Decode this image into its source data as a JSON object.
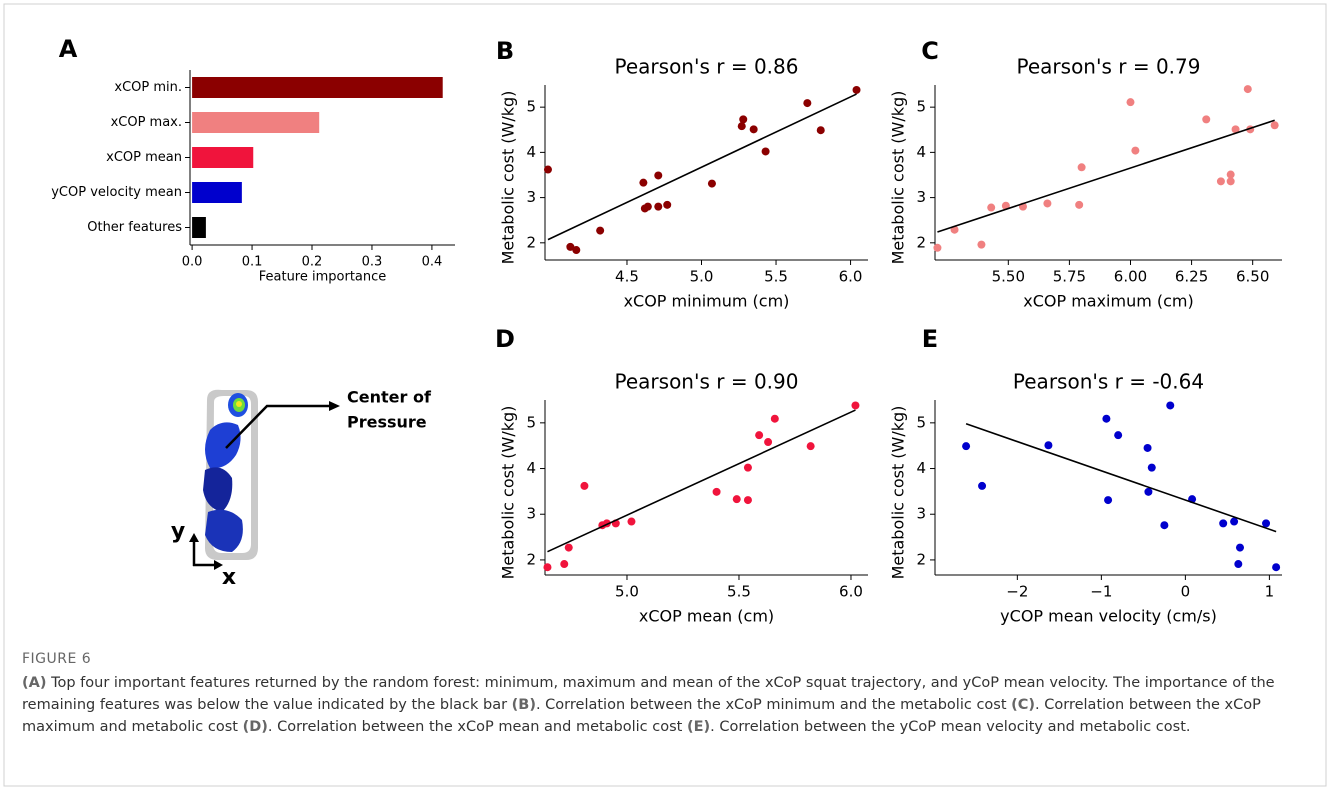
{
  "chart_data": [
    {
      "type": "barh",
      "panel": "A",
      "categories": [
        "xCOP min.",
        "xCOP max.",
        "xCOP mean",
        "yCOP velocity mean",
        "Other features"
      ],
      "values": [
        0.418,
        0.212,
        0.102,
        0.083,
        0.023
      ],
      "colors": [
        "#8b0000",
        "#f08080",
        "#f0143c",
        "#0000cd",
        "#000000"
      ],
      "xlabel": "Feature importance",
      "xlim": [
        -0.0035,
        0.4385
      ],
      "xticks": [
        {
          "value": 0,
          "label": "0.0"
        },
        0.1,
        0.2,
        0.3,
        0.4
      ]
    },
    {
      "type": "scatter",
      "panel": "B",
      "title": "Pearson's r = 0.86",
      "xlabel": "xCOP minimum  (cm)",
      "ylabel": "Metabolic cost (W/kg)",
      "color": "#8b0000",
      "x": [
        3.97,
        4.12,
        4.16,
        4.32,
        4.61,
        4.62,
        4.64,
        4.71,
        4.71,
        4.77,
        5.07,
        5.27,
        5.28,
        5.35,
        5.43,
        5.71,
        5.8,
        6.04
      ],
      "values": [
        3.62,
        1.91,
        1.84,
        2.27,
        3.33,
        2.76,
        2.8,
        2.8,
        3.49,
        2.84,
        3.31,
        4.58,
        4.73,
        4.51,
        4.02,
        5.09,
        4.49,
        5.38
      ],
      "trend_line": {
        "x": [
          3.97,
          6.04
        ],
        "values": [
          2.07,
          5.29
        ]
      },
      "trend_color": "#000000",
      "xlim": [
        3.95,
        6.117
      ],
      "xticks": [
        4.5,
        {
          "value": 5,
          "label": "5.0"
        },
        5.5,
        {
          "value": 6,
          "label": "6.0"
        }
      ],
      "ylim": [
        1.62,
        5.49
      ],
      "yticks": [
        2,
        3,
        4,
        5
      ]
    },
    {
      "type": "scatter",
      "panel": "C",
      "title": "Pearson's r = 0.79",
      "xlabel": "xCOP maximum  (cm)",
      "ylabel": "Metabolic cost (W/kg)",
      "color": "#f08080",
      "x": [
        5.21,
        5.28,
        5.39,
        5.43,
        5.49,
        5.56,
        5.66,
        5.79,
        5.8,
        6.0,
        6.02,
        6.31,
        6.37,
        6.41,
        6.41,
        6.43,
        6.48,
        6.49,
        6.59
      ],
      "values": [
        1.89,
        2.29,
        1.96,
        2.78,
        2.82,
        2.8,
        2.87,
        2.84,
        3.67,
        5.11,
        4.04,
        4.73,
        3.36,
        3.36,
        3.51,
        4.51,
        5.4,
        4.51,
        4.6
      ],
      "trend_line": {
        "x": [
          5.21,
          6.59
        ],
        "values": [
          2.24,
          4.71
        ]
      },
      "trend_color": "#000000",
      "xlim": [
        5.2,
        6.62
      ],
      "xticks": [
        {
          "value": 5.5,
          "label": "5.50"
        },
        5.75,
        {
          "value": 6,
          "label": "6.00"
        },
        6.25,
        {
          "value": 6.5,
          "label": "6.50"
        }
      ],
      "ylim": [
        1.62,
        5.49
      ],
      "yticks": [
        2,
        3,
        4,
        5
      ]
    },
    {
      "type": "scatter",
      "panel": "D",
      "title": "Pearson's r = 0.90",
      "xlabel": "xCOP mean  (cm)",
      "ylabel": "Metabolic cost (W/kg)",
      "color": "#f0143c",
      "x": [
        4.645,
        4.72,
        4.74,
        4.81,
        4.89,
        4.91,
        4.95,
        5.02,
        5.4,
        5.49,
        5.54,
        5.54,
        5.59,
        5.63,
        5.66,
        5.82,
        6.02
      ],
      "values": [
        1.84,
        1.91,
        2.27,
        3.62,
        2.76,
        2.8,
        2.8,
        2.84,
        3.49,
        3.33,
        3.31,
        4.02,
        4.73,
        4.58,
        5.09,
        4.49,
        5.38
      ],
      "trend_line": {
        "x": [
          4.645,
          6.02
        ],
        "values": [
          2.18,
          5.28
        ]
      },
      "trend_color": "#000000",
      "xlim": [
        4.634,
        6.076
      ],
      "xticks": [
        {
          "value": 5,
          "label": "5.0"
        },
        5.5,
        {
          "value": 6,
          "label": "6.0"
        }
      ],
      "ylim": [
        1.67,
        5.5
      ],
      "yticks": [
        2,
        3,
        4,
        5
      ]
    },
    {
      "type": "scatter",
      "panel": "E",
      "title": "Pearson's r = -0.64",
      "xlabel": "yCOP mean velocity (cm/s)",
      "ylabel": "Metabolic cost (W/kg)",
      "color": "#0000cd",
      "x": [
        -2.61,
        -2.42,
        -1.63,
        -0.94,
        -0.92,
        -0.8,
        -0.45,
        -0.4,
        -0.44,
        -0.25,
        -0.18,
        0.08,
        0.45,
        0.58,
        0.65,
        0.63,
        0.96,
        1.08
      ],
      "values": [
        4.49,
        3.62,
        4.51,
        5.09,
        3.31,
        4.73,
        4.45,
        4.02,
        3.49,
        2.76,
        5.38,
        3.33,
        2.8,
        2.84,
        2.27,
        1.91,
        2.8,
        1.84
      ],
      "trend_line": {
        "x": [
          -2.61,
          1.08
        ],
        "values": [
          4.98,
          2.62
        ]
      },
      "trend_color": "#000000",
      "xlim": [
        -2.98,
        1.15
      ],
      "xticks": [
        {
          "value": -2,
          "label": "−2"
        },
        {
          "value": -1,
          "label": "−1"
        },
        0,
        1
      ],
      "ylim": [
        1.67,
        5.5
      ],
      "yticks": [
        2,
        3,
        4,
        5
      ]
    }
  ],
  "illustration": {
    "label": [
      "Center of",
      "Pressure"
    ],
    "y_axis": "y",
    "x_axis": "x"
  },
  "caption": {
    "label": "FIGURE 6",
    "segments": [
      {
        "text": "(A)",
        "bold": true
      },
      {
        "text": " Top four important features returned by the random forest: minimum, maximum and mean of the xCoP squat trajectory, and yCoP mean velocity. The importance of the remaining features was below the value indicated by the black bar ",
        "bold": false
      },
      {
        "text": "(B)",
        "bold": true
      },
      {
        "text": ". Correlation between the xCoP minimum and the metabolic cost ",
        "bold": false
      },
      {
        "text": "(C)",
        "bold": true
      },
      {
        "text": ". Correlation between the xCoP maximum and metabolic cost ",
        "bold": false
      },
      {
        "text": "(D)",
        "bold": true
      },
      {
        "text": ". Correlation between the xCoP mean and metabolic cost ",
        "bold": false
      },
      {
        "text": "(E)",
        "bold": true
      },
      {
        "text": ". Correlation between the yCoP mean velocity and metabolic cost.",
        "bold": false
      }
    ]
  }
}
